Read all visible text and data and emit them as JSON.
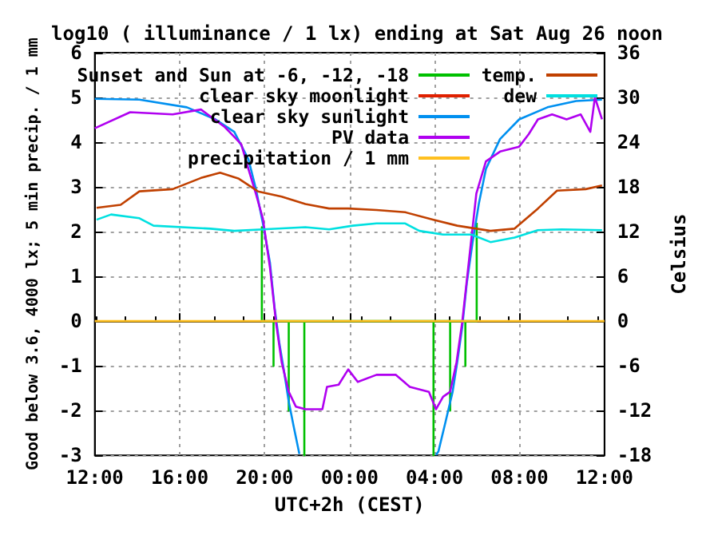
{
  "chart_data": {
    "type": "line",
    "title": "log10 ( illuminance / 1 lx) ending at Sat Aug 26 noon",
    "xlabel": "UTC+2h (CEST)",
    "ylabel": "Good below 3.6, 4000 lx; 5 min precip. / 1 mm",
    "y2label": "Celsius",
    "xlim": [
      "--08-25T12:00",
      "--08-26T12:00"
    ],
    "xticks": [
      {
        "value": "--08-25T12:00",
        "label": "12:00"
      },
      {
        "value": "--08-25T16:00",
        "label": "16:00"
      },
      {
        "value": "--08-25T20:00",
        "label": "20:00"
      },
      {
        "value": "--08-26T00:00",
        "label": "00:00"
      },
      {
        "value": "--08-26T04:00",
        "label": "04:00"
      },
      {
        "value": "--08-26T08:00",
        "label": "08:00"
      },
      {
        "value": "--08-26T12:00",
        "label": "12:00"
      }
    ],
    "ylim": [
      -3,
      6
    ],
    "yticks": [
      -3,
      -2,
      -1,
      0,
      1,
      2,
      3,
      4,
      5,
      6
    ],
    "y2lim": [
      -18,
      36
    ],
    "y2ticks": [
      -18,
      -12,
      -6,
      0,
      6,
      12,
      18,
      24,
      30,
      36
    ],
    "grid": true,
    "legend": "top",
    "series": [
      {
        "name": "Sunset and Sun at -6, -12, -18",
        "color": "#00c000",
        "x": [
          "--08-25T19:52",
          "--08-25T19:52",
          "--08-25T19:52",
          "--08-25T20:25",
          "--08-25T20:25",
          "--08-25T20:25",
          "--08-25T21:08",
          "--08-25T21:08",
          "--08-25T21:08",
          "--08-25T21:52",
          "--08-25T21:52",
          "--08-25T21:52",
          "--08-26T03:57",
          "--08-26T03:57",
          "--08-26T03:57",
          "--08-26T04:44",
          "--08-26T04:44",
          "--08-26T04:44",
          "--08-26T05:27",
          "--08-26T05:27",
          "--08-26T05:27",
          "--08-26T05:59",
          "--08-26T05:59"
        ],
        "values": [
          0,
          2.1,
          0,
          0,
          -1,
          0,
          0,
          -2,
          0,
          0,
          -3,
          0,
          0,
          -3,
          0,
          0,
          -2,
          0,
          0,
          -1,
          0,
          0,
          2.2
        ]
      },
      {
        "name": "clear sky moonlight",
        "color": "#e02000"
      },
      {
        "name": "clear sky sunlight",
        "color": "#0090f0",
        "x": [
          "--08-25T12:00",
          "--08-25T14:06",
          "--08-25T16:20",
          "--08-25T17:41",
          "--08-25T18:34",
          "--08-25T19:14",
          "--08-25T19:35",
          "--08-25T19:55",
          "--08-25T20:15",
          "--08-25T20:28",
          "--08-25T20:41",
          "--08-25T20:55",
          "--08-25T21:08",
          "--08-25T21:22",
          "--08-25T21:38",
          null,
          "--08-26T04:04",
          "--08-26T04:11",
          "--08-26T04:31",
          "--08-26T04:51",
          "--08-26T05:04",
          "--08-26T05:18",
          "--08-26T05:31",
          "--08-26T05:47",
          "--08-26T06:05",
          "--08-26T06:25",
          "--08-26T07:05",
          "--08-26T07:59",
          "--08-26T09:19",
          "--08-26T10:40",
          "--08-26T11:53"
        ],
        "values": [
          4.97,
          4.95,
          4.78,
          4.51,
          4.23,
          3.62,
          2.96,
          2.18,
          1.3,
          0.3,
          -0.47,
          -1.14,
          -1.8,
          -2.36,
          -2.97,
          null,
          -2.99,
          -2.91,
          -2.25,
          -1.58,
          -0.92,
          -0.14,
          0.85,
          1.74,
          2.62,
          3.4,
          4.07,
          4.51,
          4.78,
          4.92,
          4.95
        ]
      },
      {
        "name": "PV data",
        "color": "#b000f0",
        "x": [
          "--08-25T12:00",
          "--08-25T13:40",
          "--08-25T15:40",
          "--08-25T17:00",
          "--08-25T18:07",
          "--08-25T18:34",
          "--08-25T18:54",
          "--08-25T19:14",
          "--08-25T19:35",
          "--08-25T19:55",
          "--08-25T20:15",
          "--08-25T20:32",
          "--08-25T20:48",
          "--08-25T21:08",
          "--08-25T21:28",
          "--08-25T21:55",
          "--08-25T22:43",
          "--08-25T22:56",
          "--08-25T23:29",
          "--08-25T23:56",
          "--08-26T00:23",
          "--08-26T01:16",
          "--08-26T02:10",
          "--08-26T02:50",
          "--08-26T03:44",
          "--08-26T04:04",
          "--08-26T04:24",
          "--08-26T04:44",
          "--08-26T05:02",
          "--08-26T05:18",
          "--08-26T05:38",
          "--08-26T05:58",
          "--08-26T06:25",
          "--08-26T07:05",
          "--08-26T07:59",
          "--08-26T08:26",
          "--08-26T08:52",
          "--08-26T09:32",
          "--08-26T10:13",
          "--08-26T10:53",
          "--08-26T11:20",
          "--08-26T11:33",
          "--08-26T11:53"
        ],
        "values": [
          4.31,
          4.67,
          4.62,
          4.73,
          4.34,
          4.12,
          3.95,
          3.4,
          2.85,
          2.29,
          1.19,
          -0.03,
          -0.92,
          -1.58,
          -1.91,
          -1.97,
          -1.97,
          -1.47,
          -1.42,
          -1.08,
          -1.36,
          -1.2,
          -1.2,
          -1.47,
          -1.58,
          -1.97,
          -1.69,
          -1.58,
          -0.92,
          -0.03,
          1.41,
          2.85,
          3.57,
          3.79,
          3.9,
          4.18,
          4.51,
          4.62,
          4.51,
          4.62,
          4.23,
          5.0,
          4.51
        ]
      },
      {
        "name": "precipitation / 1 mm",
        "color": "#ffc020",
        "x": [
          "--08-25T12:00",
          "--08-26T12:00"
        ],
        "values": [
          0,
          0
        ]
      },
      {
        "name": "temp.",
        "color": "#c04000",
        "axis": "y2",
        "x": [
          "--08-25T12:05",
          "--08-25T13:13",
          "--08-25T14:06",
          "--08-25T15:40",
          "--08-25T17:00",
          "--08-25T17:54",
          "--08-25T18:47",
          "--08-25T19:41",
          "--08-25T20:48",
          "--08-25T21:55",
          "--08-25T23:02",
          "--08-25T23:56",
          "--08-26T01:16",
          "--08-26T02:37",
          "--08-26T03:57",
          "--08-26T05:04",
          "--08-26T06:38",
          "--08-26T07:46",
          "--08-26T08:52",
          "--08-26T09:46",
          "--08-26T11:07",
          "--08-26T11:53"
        ],
        "values": [
          15.2,
          15.6,
          17.4,
          17.7,
          19.2,
          19.9,
          19.1,
          17.4,
          16.7,
          15.7,
          15.1,
          15.1,
          14.9,
          14.6,
          13.6,
          12.8,
          12.1,
          12.4,
          15.1,
          17.5,
          17.7,
          18.2
        ]
      },
      {
        "name": "dew",
        "color": "#00e0e0",
        "axis": "y2",
        "x": [
          "--08-25T12:05",
          "--08-25T12:46",
          "--08-25T14:06",
          "--08-25T14:46",
          "--08-25T17:27",
          "--08-25T18:34",
          "--08-25T19:55",
          "--08-25T21:55",
          "--08-25T23:02",
          "--08-26T00:09",
          "--08-26T01:16",
          "--08-26T02:37",
          "--08-26T03:17",
          "--08-26T04:24",
          "--08-26T05:44",
          "--08-26T06:38",
          "--08-26T07:46",
          "--08-26T08:52",
          "--08-26T09:59",
          "--08-26T11:53"
        ],
        "values": [
          13.6,
          14.3,
          13.8,
          12.8,
          12.4,
          12.1,
          12.3,
          12.6,
          12.3,
          12.8,
          13.1,
          13.1,
          12.1,
          11.6,
          11.6,
          10.6,
          11.2,
          12.2,
          12.3,
          12.2
        ]
      }
    ]
  }
}
